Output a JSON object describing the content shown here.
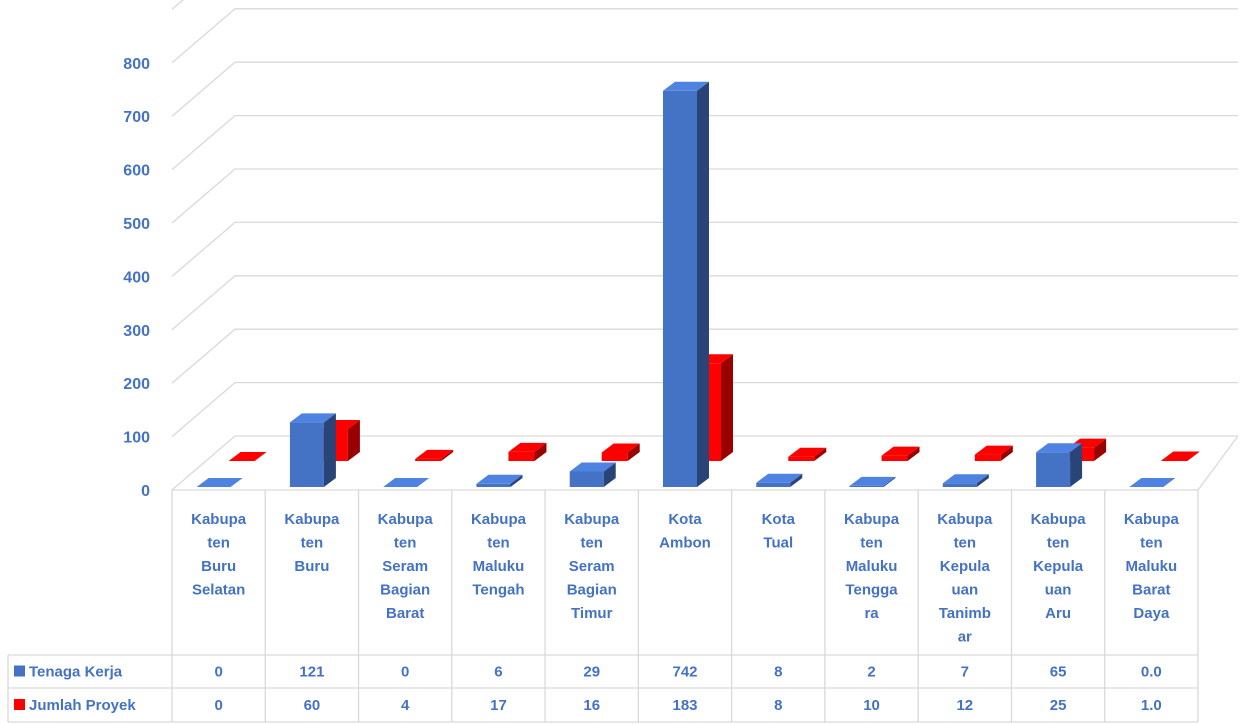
{
  "chart_data": {
    "type": "bar",
    "categories": [
      "Kabupaten Buru Selatan",
      "Kabupaten Buru",
      "Kabupaten Seram Bagian Barat",
      "Kabupaten Maluku Tengah",
      "Kabupaten Seram Bagian Timur",
      "Kota Ambon",
      "Kota Tual",
      "Kabupaten Maluku Tenggara",
      "Kabupaten Kepulauan Tanimbar",
      "Kabupaten Kepulauan Aru",
      "Kabupaten Maluku Barat Daya"
    ],
    "category_label_lines": [
      [
        "Kabupa",
        "ten",
        "Buru",
        "Selatan"
      ],
      [
        "Kabupa",
        "ten",
        "Buru"
      ],
      [
        "Kabupa",
        "ten",
        "Seram",
        "Bagian",
        "Barat"
      ],
      [
        "Kabupa",
        "ten",
        "Maluku",
        "Tengah"
      ],
      [
        "Kabupa",
        "ten",
        "Seram",
        "Bagian",
        "Timur"
      ],
      [
        "Kota",
        "Ambon"
      ],
      [
        "Kota",
        "Tual"
      ],
      [
        "Kabupa",
        "ten",
        "Maluku",
        "Tengga",
        "ra"
      ],
      [
        "Kabupa",
        "ten",
        "Kepula",
        "uan",
        "Tanimb",
        "ar"
      ],
      [
        "Kabupa",
        "ten",
        "Kepula",
        "uan",
        "Aru"
      ],
      [
        "Kabupa",
        "ten",
        "Maluku",
        "Barat",
        "Daya"
      ]
    ],
    "series": [
      {
        "name": "Tenaga Kerja",
        "color": "#4472C4",
        "values": [
          0,
          121,
          0,
          6,
          29,
          742,
          8,
          2,
          7,
          65,
          0.0
        ],
        "table_values": [
          "0",
          "121",
          "0",
          "6",
          "29",
          "742",
          "8",
          "2",
          "7",
          "65",
          "0.0"
        ]
      },
      {
        "name": "Jumlah Proyek",
        "color": "#FF0000",
        "values": [
          0,
          60,
          4,
          17,
          16,
          183,
          8,
          10,
          12,
          25,
          1.0
        ],
        "table_values": [
          "0",
          "60",
          "4",
          "17",
          "16",
          "183",
          "8",
          "10",
          "12",
          "25",
          "1.0"
        ]
      }
    ],
    "y_ticks": [
      "0",
      "100",
      "200",
      "300",
      "400",
      "500",
      "600",
      "700",
      "800"
    ],
    "ylim": [
      0,
      800
    ],
    "grid": true,
    "legend": "data-table",
    "style": "3d-column"
  }
}
